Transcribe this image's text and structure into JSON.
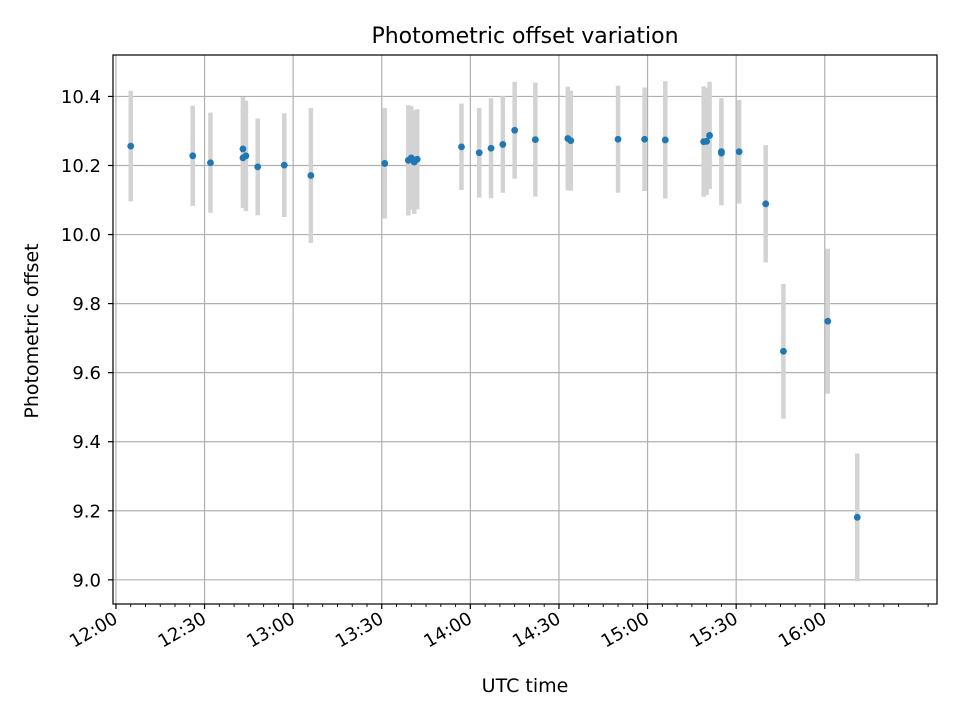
{
  "chart_data": {
    "type": "scatter",
    "title": "Photometric offset variation",
    "xlabel": "UTC time",
    "ylabel": "Photometric offset",
    "x_axis_kind": "time",
    "xlim": [
      "11:59",
      "16:38"
    ],
    "ylim": [
      8.93,
      10.52
    ],
    "grid": true,
    "x_ticks": [
      "12:00",
      "12:30",
      "13:00",
      "13:30",
      "14:00",
      "14:30",
      "15:00",
      "15:30",
      "16:00"
    ],
    "y_ticks": [
      9.0,
      9.2,
      9.4,
      9.6,
      9.8,
      10.0,
      10.2,
      10.4
    ],
    "point_color": "#1f77b4",
    "errorbar_color": "#d3d3d3",
    "points": [
      {
        "t": "12:05",
        "y": 10.256,
        "err": 0.16
      },
      {
        "t": "12:26",
        "y": 10.228,
        "err": 0.145
      },
      {
        "t": "12:32",
        "y": 10.208,
        "err": 0.145
      },
      {
        "t": "12:43",
        "y": 10.222,
        "err": 0.145
      },
      {
        "t": "12:43",
        "y": 10.248,
        "err": 0.15
      },
      {
        "t": "12:44",
        "y": 10.228,
        "err": 0.16
      },
      {
        "t": "12:48",
        "y": 10.196,
        "err": 0.14
      },
      {
        "t": "12:57",
        "y": 10.201,
        "err": 0.15
      },
      {
        "t": "13:06",
        "y": 10.171,
        "err": 0.195
      },
      {
        "t": "13:31",
        "y": 10.206,
        "err": 0.16
      },
      {
        "t": "13:39",
        "y": 10.215,
        "err": 0.16
      },
      {
        "t": "13:40",
        "y": 10.222,
        "err": 0.15
      },
      {
        "t": "13:41",
        "y": 10.21,
        "err": 0.15
      },
      {
        "t": "13:42",
        "y": 10.218,
        "err": 0.145
      },
      {
        "t": "13:57",
        "y": 10.254,
        "err": 0.125
      },
      {
        "t": "14:03",
        "y": 10.237,
        "err": 0.13
      },
      {
        "t": "14:07",
        "y": 10.25,
        "err": 0.145
      },
      {
        "t": "14:11",
        "y": 10.261,
        "err": 0.14
      },
      {
        "t": "14:15",
        "y": 10.302,
        "err": 0.14
      },
      {
        "t": "14:22",
        "y": 10.275,
        "err": 0.165
      },
      {
        "t": "14:33",
        "y": 10.278,
        "err": 0.15
      },
      {
        "t": "14:34",
        "y": 10.272,
        "err": 0.145
      },
      {
        "t": "14:50",
        "y": 10.276,
        "err": 0.155
      },
      {
        "t": "14:59",
        "y": 10.276,
        "err": 0.15
      },
      {
        "t": "15:06",
        "y": 10.274,
        "err": 0.17
      },
      {
        "t": "15:19",
        "y": 10.269,
        "err": 0.16
      },
      {
        "t": "15:20",
        "y": 10.27,
        "err": 0.155
      },
      {
        "t": "15:21",
        "y": 10.287,
        "err": 0.155
      },
      {
        "t": "15:25",
        "y": 10.236,
        "err": 0.15
      },
      {
        "t": "15:25",
        "y": 10.24,
        "err": 0.155
      },
      {
        "t": "15:31",
        "y": 10.24,
        "err": 0.15
      },
      {
        "t": "15:40",
        "y": 10.089,
        "err": 0.17
      },
      {
        "t": "15:46",
        "y": 9.662,
        "err": 0.195
      },
      {
        "t": "16:01",
        "y": 9.749,
        "err": 0.21
      },
      {
        "t": "16:11",
        "y": 9.181,
        "err": 0.185
      }
    ]
  }
}
